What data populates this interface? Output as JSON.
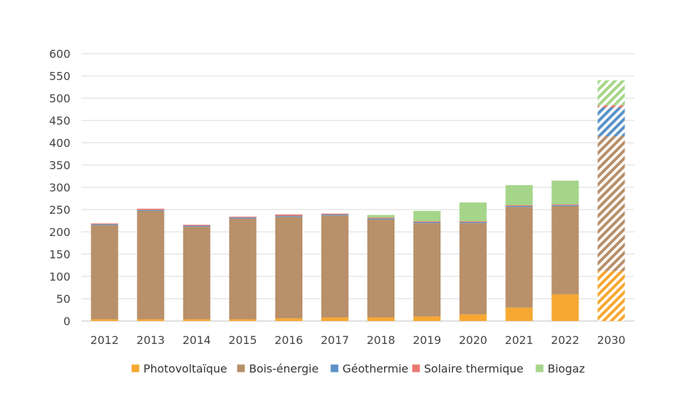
{
  "chart_data": {
    "type": "bar",
    "stacked": true,
    "categories": [
      "2012",
      "2013",
      "2014",
      "2015",
      "2016",
      "2017",
      "2018",
      "2019",
      "2020",
      "2021",
      "2022",
      "2030"
    ],
    "projected_categories": [
      "2030"
    ],
    "ylim": [
      0,
      600
    ],
    "yticks": [
      0,
      50,
      100,
      150,
      200,
      250,
      300,
      350,
      400,
      450,
      500,
      550,
      600
    ],
    "grid": true,
    "legend_position": "bottom",
    "series": [
      {
        "name": "Photovoltaïque",
        "color": "#F7A832",
        "values": [
          4,
          4,
          4,
          4,
          6,
          8,
          8,
          10,
          15,
          30,
          60,
          112
        ]
      },
      {
        "name": "Bois-énergie",
        "color": "#B8906A",
        "values": [
          211,
          243,
          208,
          226,
          228,
          229,
          220,
          210,
          205,
          226,
          198,
          303
        ]
      },
      {
        "name": "Géothermie",
        "color": "#5B93C7",
        "values": [
          2,
          2,
          2,
          2,
          2,
          2,
          2,
          2,
          2,
          2,
          2,
          64
        ]
      },
      {
        "name": "Solaire thermique",
        "color": "#E87A72",
        "values": [
          2,
          3,
          2,
          2,
          3,
          2,
          2,
          2,
          2,
          2,
          2,
          5
        ]
      },
      {
        "name": "Biogaz",
        "color": "#A5D58A",
        "values": [
          0,
          0,
          0,
          0,
          0,
          0,
          6,
          23,
          42,
          45,
          53,
          56
        ]
      }
    ]
  }
}
